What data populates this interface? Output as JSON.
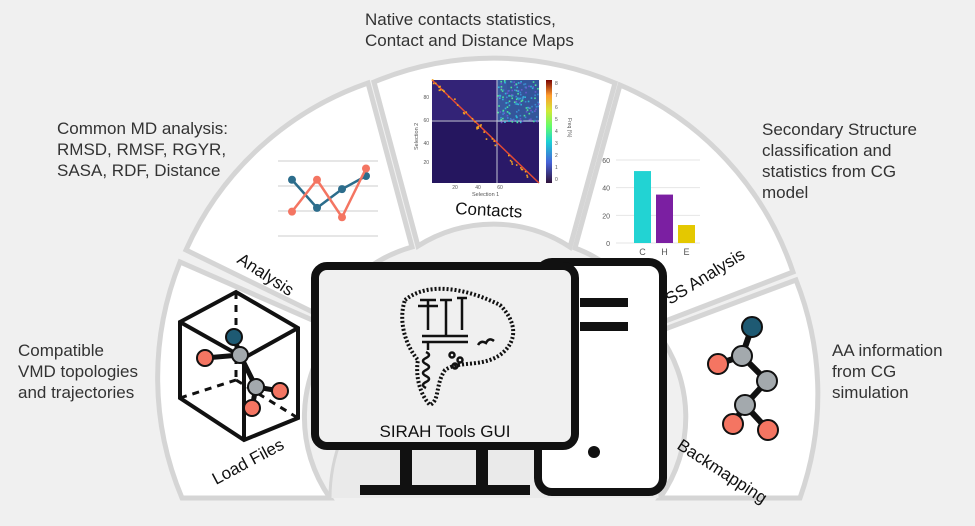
{
  "descriptions": {
    "contacts": [
      "Native contacts statistics,",
      "Contact and Distance Maps"
    ],
    "analysis": [
      "Common MD analysis:",
      "RMSD, RMSF, RGYR,",
      "SASA, RDF, Distance"
    ],
    "ss": [
      "Secondary Structure",
      "classification and",
      "statistics from CG",
      "model"
    ],
    "load": [
      "Compatible",
      "VMD topologies",
      "and trajectories"
    ],
    "backmapping": [
      "AA information",
      "from CG",
      "simulation"
    ]
  },
  "segments": {
    "load": "Load Files",
    "analysis": "Analysis",
    "contacts": "Contacts",
    "ss": "SS Analysis",
    "backmapping": "Backmapping"
  },
  "center_title": "SIRAH Tools GUI",
  "contact_map": {
    "x_label": "Selection 1",
    "y_label": "Selection 2",
    "x_ticks": [
      "20",
      "40",
      "60"
    ],
    "y_ticks": [
      "80",
      "60",
      "40",
      "20"
    ],
    "colorbar_label": "Freq (%)",
    "colorbar_ticks": [
      "8",
      "7",
      "6",
      "5",
      "4",
      "3",
      "2",
      "1",
      "0"
    ]
  },
  "ss_chart": {
    "type": "bar",
    "categories": [
      "C",
      "H",
      "E"
    ],
    "values": [
      52,
      35,
      13
    ],
    "ylim": [
      0,
      60
    ],
    "yticks": [
      "0",
      "20",
      "40",
      "60"
    ],
    "colors": [
      "#22d3d3",
      "#7b1fa2",
      "#e4c800"
    ]
  },
  "line_chart": {
    "series": [
      {
        "color": "#2c6d8c",
        "values": [
          3,
          1.5,
          2.5,
          3.2
        ]
      },
      {
        "color": "#f47562",
        "values": [
          1.3,
          3,
          1,
          3.6
        ]
      }
    ]
  },
  "colors": {
    "segment_fill": "#ffffff",
    "segment_stroke": "#d5d5d5",
    "node_dark": "#1e5a73",
    "node_red": "#f47562",
    "node_gray": "#a3a9ad"
  }
}
